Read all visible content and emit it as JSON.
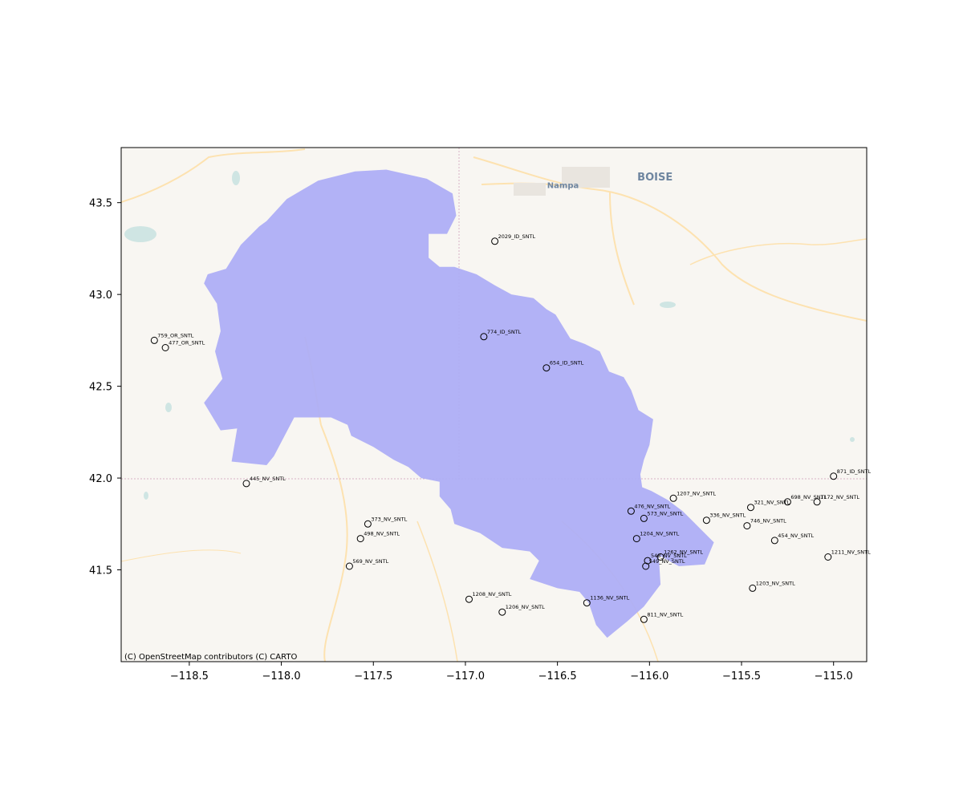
{
  "map": {
    "attribution": "(C) OpenStreetMap contributors (C) CARTO",
    "basemap_labels": [
      {
        "text": "BOISE",
        "lon": -115.97,
        "lat": 43.62
      },
      {
        "text": "Nampa",
        "lon": -116.47,
        "lat": 43.58
      }
    ],
    "x_ticks": [
      {
        "value": -118.5,
        "label": "−118.5"
      },
      {
        "value": -118.0,
        "label": "−118.0"
      },
      {
        "value": -117.5,
        "label": "−117.5"
      },
      {
        "value": -117.0,
        "label": "−117.0"
      },
      {
        "value": -116.5,
        "label": "−116.5"
      },
      {
        "value": -116.0,
        "label": "−116.0"
      },
      {
        "value": -115.5,
        "label": "−115.5"
      },
      {
        "value": -115.0,
        "label": "−115.0"
      }
    ],
    "y_ticks": [
      {
        "value": 41.5,
        "label": "41.5"
      },
      {
        "value": 42.0,
        "label": "42.0"
      },
      {
        "value": 42.5,
        "label": "42.5"
      },
      {
        "value": 43.0,
        "label": "43.0"
      },
      {
        "value": 43.5,
        "label": "43.5"
      }
    ],
    "xlim": [
      -118.87,
      -114.82
    ],
    "ylim": [
      41.0,
      43.8
    ],
    "colors": {
      "basin_fill": "#aeaef5",
      "basemap": "#f8f6f2",
      "marker_edge": "#000000"
    },
    "basin_outline": [
      [
        -118.32,
        42.54
      ],
      [
        -118.42,
        42.41
      ],
      [
        -118.33,
        42.26
      ],
      [
        -118.24,
        42.27
      ],
      [
        -118.27,
        42.09
      ],
      [
        -118.08,
        42.07
      ],
      [
        -118.04,
        42.12
      ],
      [
        -117.93,
        42.33
      ],
      [
        -117.73,
        42.33
      ],
      [
        -117.64,
        42.29
      ],
      [
        -117.62,
        42.23
      ],
      [
        -117.5,
        42.17
      ],
      [
        -117.39,
        42.1
      ],
      [
        -117.31,
        42.06
      ],
      [
        -117.24,
        42.0
      ],
      [
        -117.14,
        41.98
      ],
      [
        -117.14,
        41.9
      ],
      [
        -117.08,
        41.83
      ],
      [
        -117.06,
        41.75
      ],
      [
        -116.92,
        41.7
      ],
      [
        -116.8,
        41.62
      ],
      [
        -116.65,
        41.6
      ],
      [
        -116.6,
        41.55
      ],
      [
        -116.65,
        41.45
      ],
      [
        -116.5,
        41.4
      ],
      [
        -116.38,
        41.38
      ],
      [
        -116.33,
        41.32
      ],
      [
        -116.29,
        41.2
      ],
      [
        -116.23,
        41.13
      ],
      [
        -116.12,
        41.22
      ],
      [
        -116.03,
        41.3
      ],
      [
        -115.94,
        41.42
      ],
      [
        -115.95,
        41.58
      ],
      [
        -115.84,
        41.52
      ],
      [
        -115.7,
        41.53
      ],
      [
        -115.65,
        41.65
      ],
      [
        -115.7,
        41.7
      ],
      [
        -115.76,
        41.76
      ],
      [
        -115.82,
        41.82
      ],
      [
        -115.9,
        41.88
      ],
      [
        -115.99,
        41.93
      ],
      [
        -116.04,
        41.95
      ],
      [
        -116.05,
        42.02
      ],
      [
        -116.03,
        42.1
      ],
      [
        -116.0,
        42.18
      ],
      [
        -115.98,
        42.32
      ],
      [
        -116.06,
        42.37
      ],
      [
        -116.1,
        42.48
      ],
      [
        -116.14,
        42.55
      ],
      [
        -116.22,
        42.58
      ],
      [
        -116.27,
        42.69
      ],
      [
        -116.35,
        42.73
      ],
      [
        -116.43,
        42.76
      ],
      [
        -116.51,
        42.89
      ],
      [
        -116.56,
        42.92
      ],
      [
        -116.63,
        42.98
      ],
      [
        -116.75,
        43.0
      ],
      [
        -116.84,
        43.05
      ],
      [
        -116.94,
        43.11
      ],
      [
        -117.06,
        43.15
      ],
      [
        -117.14,
        43.15
      ],
      [
        -117.2,
        43.2
      ],
      [
        -117.2,
        43.33
      ],
      [
        -117.1,
        43.33
      ],
      [
        -117.05,
        43.43
      ],
      [
        -117.07,
        43.55
      ],
      [
        -117.21,
        43.63
      ],
      [
        -117.43,
        43.68
      ],
      [
        -117.6,
        43.67
      ],
      [
        -117.8,
        43.62
      ],
      [
        -117.97,
        43.52
      ],
      [
        -118.08,
        43.4
      ],
      [
        -118.12,
        43.37
      ],
      [
        -118.22,
        43.27
      ],
      [
        -118.3,
        43.14
      ],
      [
        -118.4,
        43.11
      ],
      [
        -118.42,
        43.06
      ],
      [
        -118.35,
        42.95
      ],
      [
        -118.33,
        42.8
      ],
      [
        -118.36,
        42.69
      ]
    ],
    "stations": [
      {
        "label": "2029_ID_SNTL",
        "lon": -116.84,
        "lat": 43.29
      },
      {
        "label": "774_ID_SNTL",
        "lon": -116.9,
        "lat": 42.77
      },
      {
        "label": "654_ID_SNTL",
        "lon": -116.56,
        "lat": 42.6
      },
      {
        "label": "759_OR_SNTL",
        "lon": -118.69,
        "lat": 42.75
      },
      {
        "label": "477_OR_SNTL",
        "lon": -118.63,
        "lat": 42.71
      },
      {
        "label": "445_NV_SNTL",
        "lon": -118.19,
        "lat": 41.97
      },
      {
        "label": "871_ID_SNTL",
        "lon": -115.0,
        "lat": 42.01
      },
      {
        "label": "1207_NV_SNTL",
        "lon": -115.87,
        "lat": 41.89
      },
      {
        "label": "698_NV_SNTL",
        "lon": -115.25,
        "lat": 41.87
      },
      {
        "label": "1172_NV_SNTL",
        "lon": -115.09,
        "lat": 41.87
      },
      {
        "label": "321_NV_SNTL",
        "lon": -115.45,
        "lat": 41.84
      },
      {
        "label": "476_NV_SNTL",
        "lon": -116.1,
        "lat": 41.82
      },
      {
        "label": "573_NV_SNTL",
        "lon": -116.03,
        "lat": 41.78
      },
      {
        "label": "336_NV_SNTL",
        "lon": -115.69,
        "lat": 41.77
      },
      {
        "label": "746_NV_SNTL",
        "lon": -115.47,
        "lat": 41.74
      },
      {
        "label": "373_NV_SNTL",
        "lon": -117.53,
        "lat": 41.75
      },
      {
        "label": "498_NV_SNTL",
        "lon": -117.57,
        "lat": 41.67
      },
      {
        "label": "1204_NV_SNTL",
        "lon": -116.07,
        "lat": 41.67
      },
      {
        "label": "454_NV_SNTL",
        "lon": -115.32,
        "lat": 41.66
      },
      {
        "label": "1262_NV_SNTL",
        "lon": -115.94,
        "lat": 41.57
      },
      {
        "label": "548_NV_SNTL",
        "lon": -116.01,
        "lat": 41.55
      },
      {
        "label": "549_NV_SNTL",
        "lon": -116.02,
        "lat": 41.52
      },
      {
        "label": "1211_NV_SNTL",
        "lon": -115.03,
        "lat": 41.57
      },
      {
        "label": "569_NV_SNTL",
        "lon": -117.63,
        "lat": 41.52
      },
      {
        "label": "1203_NV_SNTL",
        "lon": -115.44,
        "lat": 41.4
      },
      {
        "label": "1208_NV_SNTL",
        "lon": -116.98,
        "lat": 41.34
      },
      {
        "label": "1136_NV_SNTL",
        "lon": -116.34,
        "lat": 41.32
      },
      {
        "label": "1206_NV_SNTL",
        "lon": -116.8,
        "lat": 41.27
      },
      {
        "label": "811_NV_SNTL",
        "lon": -116.03,
        "lat": 41.23
      }
    ]
  }
}
